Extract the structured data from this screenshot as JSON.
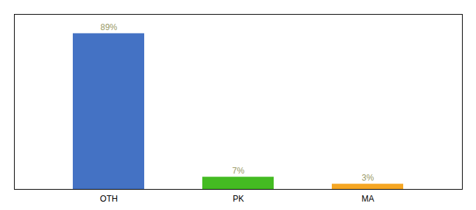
{
  "chart_data": {
    "type": "bar",
    "categories": [
      "OTH",
      "PK",
      "MA"
    ],
    "values": [
      89,
      7,
      3
    ],
    "value_labels": [
      "89%",
      "7%",
      "3%"
    ],
    "colors": [
      "#4472c4",
      "#44bb22",
      "#f5a623"
    ],
    "ylim": [
      0,
      100
    ],
    "data_labels": true,
    "tick_labels": "x"
  }
}
